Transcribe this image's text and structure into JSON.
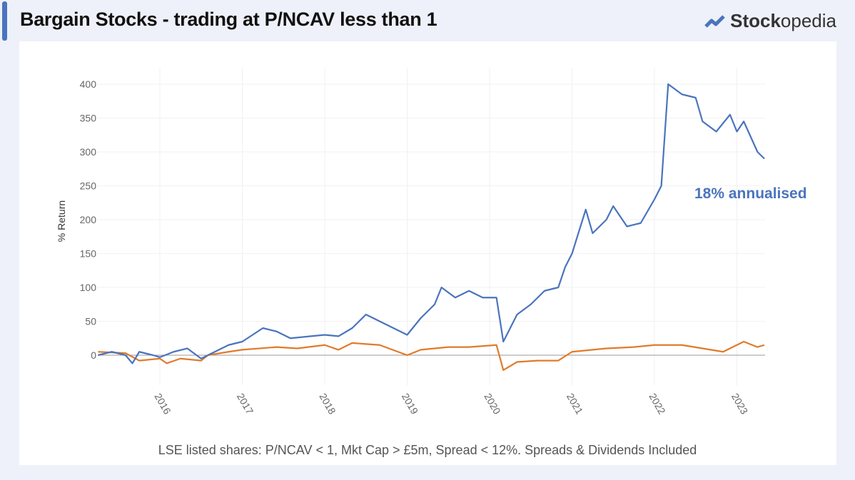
{
  "header": {
    "title": "Bargain Stocks - trading at P/NCAV less than 1",
    "brand_bold": "Stock",
    "brand_light": "opedia"
  },
  "footer": "LSE listed shares: P/NCAV < 1,  Mkt Cap > £5m,  Spread < 12%.   Spreads & Dividends Included",
  "chart_data": {
    "type": "line",
    "ylabel": "% Return",
    "ylim": [
      -40,
      420
    ],
    "xlim": [
      "2015-04",
      "2023-05"
    ],
    "yticks": [
      0,
      50,
      100,
      150,
      200,
      250,
      300,
      350,
      400
    ],
    "xticks": [
      "2016",
      "2017",
      "2018",
      "2019",
      "2020",
      "2021",
      "2022",
      "2023"
    ],
    "grid": true,
    "annotation": {
      "text": "18% annualised",
      "color": "#4a74bd"
    },
    "series": [
      {
        "color": "#4a74bd",
        "points": [
          [
            "2015-04",
            0
          ],
          [
            "2015-06",
            5
          ],
          [
            "2015-08",
            0
          ],
          [
            "2015-09",
            -12
          ],
          [
            "2015-10",
            5
          ],
          [
            "2015-12",
            0
          ],
          [
            "2016-01",
            -3
          ],
          [
            "2016-03",
            5
          ],
          [
            "2016-05",
            10
          ],
          [
            "2016-07",
            -5
          ],
          [
            "2016-09",
            5
          ],
          [
            "2016-11",
            15
          ],
          [
            "2017-01",
            20
          ],
          [
            "2017-04",
            40
          ],
          [
            "2017-06",
            35
          ],
          [
            "2017-08",
            25
          ],
          [
            "2017-11",
            28
          ],
          [
            "2018-01",
            30
          ],
          [
            "2018-03",
            28
          ],
          [
            "2018-05",
            40
          ],
          [
            "2018-07",
            60
          ],
          [
            "2018-09",
            50
          ],
          [
            "2018-11",
            40
          ],
          [
            "2019-01",
            30
          ],
          [
            "2019-03",
            55
          ],
          [
            "2019-05",
            75
          ],
          [
            "2019-06",
            100
          ],
          [
            "2019-08",
            85
          ],
          [
            "2019-10",
            95
          ],
          [
            "2019-12",
            85
          ],
          [
            "2020-02",
            85
          ],
          [
            "2020-03",
            20
          ],
          [
            "2020-05",
            60
          ],
          [
            "2020-07",
            75
          ],
          [
            "2020-09",
            95
          ],
          [
            "2020-11",
            100
          ],
          [
            "2020-12",
            130
          ],
          [
            "2021-01",
            150
          ],
          [
            "2021-03",
            215
          ],
          [
            "2021-04",
            180
          ],
          [
            "2021-06",
            200
          ],
          [
            "2021-07",
            220
          ],
          [
            "2021-09",
            190
          ],
          [
            "2021-11",
            195
          ],
          [
            "2022-01",
            230
          ],
          [
            "2022-02",
            250
          ],
          [
            "2022-03",
            400
          ],
          [
            "2022-05",
            385
          ],
          [
            "2022-07",
            380
          ],
          [
            "2022-08",
            345
          ],
          [
            "2022-10",
            330
          ],
          [
            "2022-12",
            355
          ],
          [
            "2023-01",
            330
          ],
          [
            "2023-02",
            345
          ],
          [
            "2023-04",
            300
          ],
          [
            "2023-05",
            290
          ]
        ]
      },
      {
        "color": "#e07b2a",
        "points": [
          [
            "2015-04",
            5
          ],
          [
            "2015-08",
            3
          ],
          [
            "2015-10",
            -8
          ],
          [
            "2016-01",
            -5
          ],
          [
            "2016-02",
            -12
          ],
          [
            "2016-04",
            -5
          ],
          [
            "2016-07",
            -8
          ],
          [
            "2016-08",
            0
          ],
          [
            "2016-11",
            5
          ],
          [
            "2017-01",
            8
          ],
          [
            "2017-06",
            12
          ],
          [
            "2017-09",
            10
          ],
          [
            "2018-01",
            15
          ],
          [
            "2018-03",
            8
          ],
          [
            "2018-05",
            18
          ],
          [
            "2018-09",
            15
          ],
          [
            "2019-01",
            0
          ],
          [
            "2019-03",
            8
          ],
          [
            "2019-07",
            12
          ],
          [
            "2019-10",
            12
          ],
          [
            "2020-02",
            15
          ],
          [
            "2020-03",
            -22
          ],
          [
            "2020-05",
            -10
          ],
          [
            "2020-08",
            -8
          ],
          [
            "2020-11",
            -8
          ],
          [
            "2021-01",
            5
          ],
          [
            "2021-06",
            10
          ],
          [
            "2021-10",
            12
          ],
          [
            "2022-01",
            15
          ],
          [
            "2022-05",
            15
          ],
          [
            "2022-08",
            10
          ],
          [
            "2022-11",
            5
          ],
          [
            "2023-02",
            20
          ],
          [
            "2023-04",
            12
          ],
          [
            "2023-05",
            15
          ]
        ]
      }
    ]
  }
}
